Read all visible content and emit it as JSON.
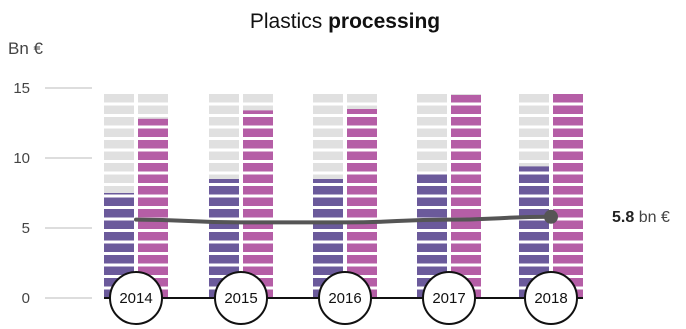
{
  "chart_data": {
    "type": "bar",
    "title": {
      "regular": "Plastics",
      "bold": "processing"
    },
    "ylabel": "Bn €",
    "ylim": [
      0,
      15
    ],
    "yticks": [
      0,
      5,
      10,
      15
    ],
    "categories": [
      "2014",
      "2015",
      "2016",
      "2017",
      "2018"
    ],
    "series": [
      {
        "name": "",
        "color": "#6b5a9b",
        "background": "#e0e0e0",
        "values": [
          7.5,
          8.5,
          8.5,
          8.9,
          9.4
        ]
      },
      {
        "name": "",
        "color": "#b55ea6",
        "background": "#e0e0e0",
        "values": [
          12.8,
          13.4,
          13.5,
          14.5,
          15.0
        ]
      }
    ],
    "line": {
      "color": "#555555",
      "values": [
        5.6,
        5.4,
        5.4,
        5.6,
        5.8
      ],
      "marker_last": true
    },
    "callout": {
      "value": "5.8",
      "unit": "bn €"
    },
    "grid": false
  }
}
